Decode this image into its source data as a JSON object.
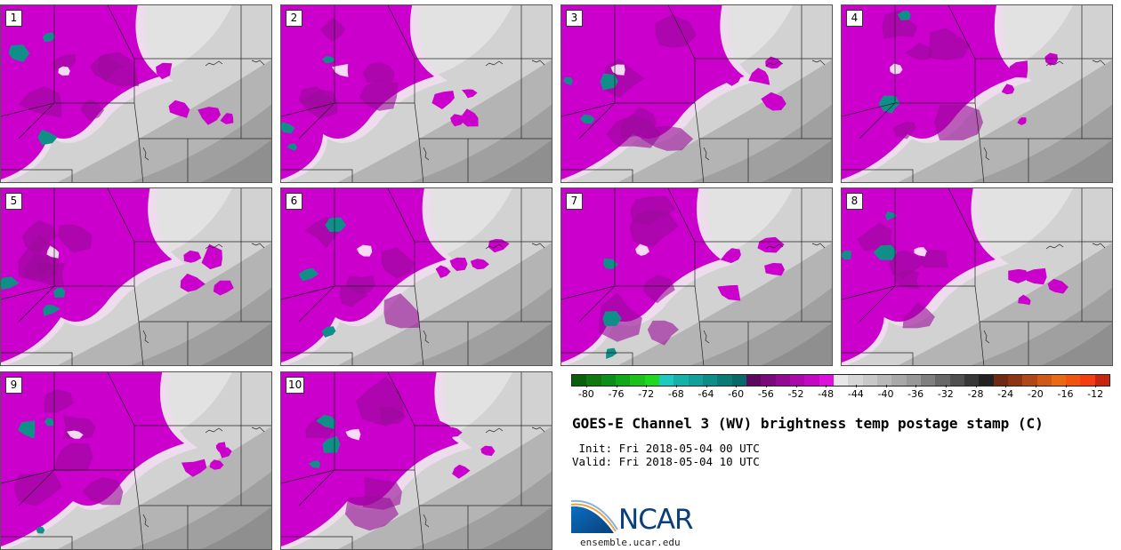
{
  "panels": [
    {
      "label": "1"
    },
    {
      "label": "2"
    },
    {
      "label": "3"
    },
    {
      "label": "4"
    },
    {
      "label": "5"
    },
    {
      "label": "6"
    },
    {
      "label": "7"
    },
    {
      "label": "8"
    },
    {
      "label": "9"
    },
    {
      "label": "10"
    }
  ],
  "colorbar": {
    "colors": [
      "#0a5f0a",
      "#0f780f",
      "#0c8f1a",
      "#12a81c",
      "#1cc11c",
      "#20d820",
      "#1ec9c0",
      "#16b2aa",
      "#11a09a",
      "#0d8c88",
      "#0a7a76",
      "#08686a",
      "#5a0a5a",
      "#7a0a7a",
      "#920a92",
      "#aa0aaa",
      "#c20ac2",
      "#dd11dd",
      "#e8e8e8",
      "#d6d6d6",
      "#c8c8c8",
      "#b8b8b8",
      "#a8a8a8",
      "#989898",
      "#7f7f7f",
      "#686868",
      "#505050",
      "#383838",
      "#222222",
      "#6e2a12",
      "#8e3414",
      "#b04716",
      "#cf5a15",
      "#e86a12",
      "#ef5510",
      "#f23e10",
      "#c8250e"
    ],
    "ticks": [
      "-80",
      "-76",
      "-72",
      "-68",
      "-64",
      "-60",
      "-56",
      "-52",
      "-48",
      "-44",
      "-40",
      "-36",
      "-32",
      "-28",
      "-24",
      "-20",
      "-16",
      "-12"
    ],
    "min": -82,
    "max": -10
  },
  "title": "GOES-E Channel 3 (WV) brightness temp postage stamp (C)",
  "init_text": " Init: Fri 2018-05-04 00 UTC",
  "valid_text": "Valid: Fri 2018-05-04 10 UTC",
  "logo_text": "NCAR",
  "website": "ensemble.ucar.edu",
  "palette": {
    "magenta": "#cc00cc",
    "dark_magenta": "#9a0a9a",
    "teal": "#0f8f88",
    "light_gray": "#e6e6e6",
    "mid_gray": "#c0c0c0",
    "dark_gray": "#8f8f8f"
  }
}
